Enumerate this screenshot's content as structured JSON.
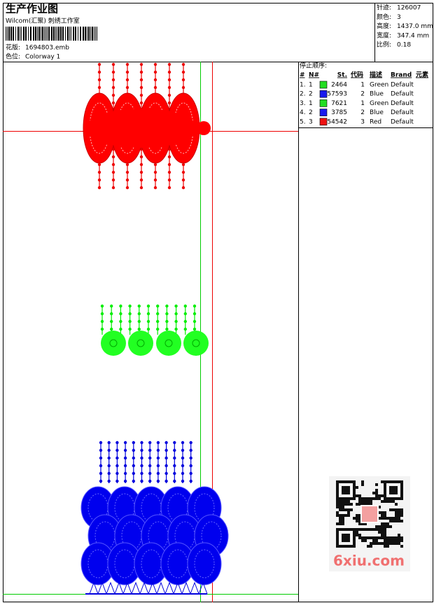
{
  "header": {
    "title": "生产作业图",
    "company": "Wilcom(汇聚) 刺绣工作室",
    "design_label": "花版:",
    "design": "1694803.emb",
    "colorway_label": "色位:",
    "colorway": "Colorway 1"
  },
  "info": [
    {
      "label": "针迹:",
      "value": "126007"
    },
    {
      "label": "颜色:",
      "value": "3"
    },
    {
      "label": "高度:",
      "value": "1437.0 mm"
    },
    {
      "label": "宽度:",
      "value": "347.4 mm"
    },
    {
      "label": "比例:",
      "value": "0.18"
    }
  ],
  "stop_sequence": {
    "title": "停止顺序:",
    "columns": [
      "#",
      "N#",
      "St.",
      "代码",
      "描述",
      "Brand",
      "元素"
    ],
    "rows": [
      {
        "index": "1.",
        "needle": "1",
        "color": "#22dd22",
        "stitches": "2464",
        "code": "1",
        "description": "Green",
        "brand": "Default"
      },
      {
        "index": "2.",
        "needle": "2",
        "color": "#1a1aee",
        "stitches": "57593",
        "code": "2",
        "description": "Blue",
        "brand": "Default"
      },
      {
        "index": "3.",
        "needle": "1",
        "color": "#22dd22",
        "stitches": "7621",
        "code": "1",
        "description": "Green",
        "brand": "Default"
      },
      {
        "index": "4.",
        "needle": "2",
        "color": "#1a1aee",
        "stitches": "3785",
        "code": "2",
        "description": "Blue",
        "brand": "Default"
      },
      {
        "index": "5.",
        "needle": "3",
        "color": "#ee1111",
        "stitches": "54542",
        "code": "3",
        "description": "Red",
        "brand": "Default"
      }
    ]
  },
  "watermark": "6xiu.com"
}
